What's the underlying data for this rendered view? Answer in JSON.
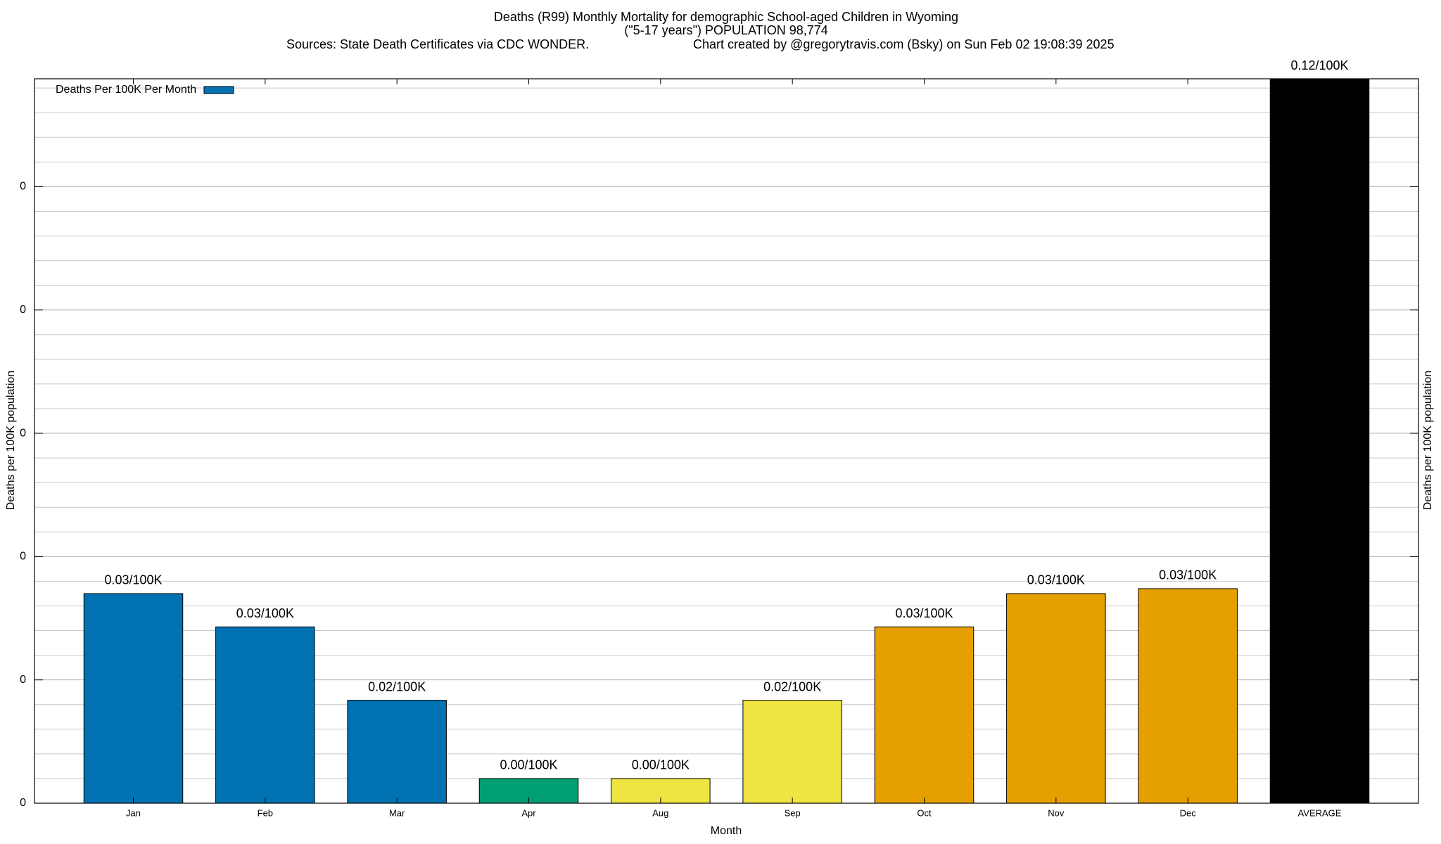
{
  "chart_data": {
    "type": "bar",
    "title": "Deaths (R99) Monthly Mortality for demographic School-aged Children in Wyoming",
    "subtitle": "(\"5-17 years\") POPULATION 98,774",
    "sources": "Sources: State Death Certificates via CDC WONDER.",
    "credit": "Chart created by @gregorytravis.com (Bsky) on Sun Feb 02 19:08:39 2025",
    "xlabel": "Month",
    "ylabel": "Deaths per 100K population",
    "legend": "top-left",
    "series": [
      {
        "name": "Deaths Per 100K Per Month",
        "color": "#0072b2"
      }
    ],
    "categories": [
      "Jan",
      "Feb",
      "Mar",
      "Apr",
      "Aug",
      "Sep",
      "Oct",
      "Nov",
      "Dec",
      "AVERAGE"
    ],
    "values": [
      0.034,
      0.0286,
      0.0167,
      0.004,
      0.004,
      0.0167,
      0.0286,
      0.034,
      0.0348,
      0.12
    ],
    "value_labels": [
      "0.03/100K",
      "0.03/100K",
      "0.02/100K",
      "0.00/100K",
      "0.00/100K",
      "0.02/100K",
      "0.03/100K",
      "0.03/100K",
      "0.03/100K",
      "0.12/100K"
    ],
    "colors": [
      "#0072b2",
      "#0072b2",
      "#0072b2",
      "#009e73",
      "#f0e442",
      "#f0e442",
      "#e69f00",
      "#e69f00",
      "#e69f00",
      "#000000"
    ],
    "ylim": [
      0,
      0.1175
    ],
    "yticks": [
      0,
      {
        "value": 0.02,
        "label": "0"
      },
      {
        "value": 0.04,
        "label": "0"
      },
      {
        "value": 0.06,
        "label": "0"
      },
      {
        "value": 0.08,
        "label": "0"
      },
      {
        "value": 0.1,
        "label": "0"
      }
    ],
    "grid": true
  }
}
